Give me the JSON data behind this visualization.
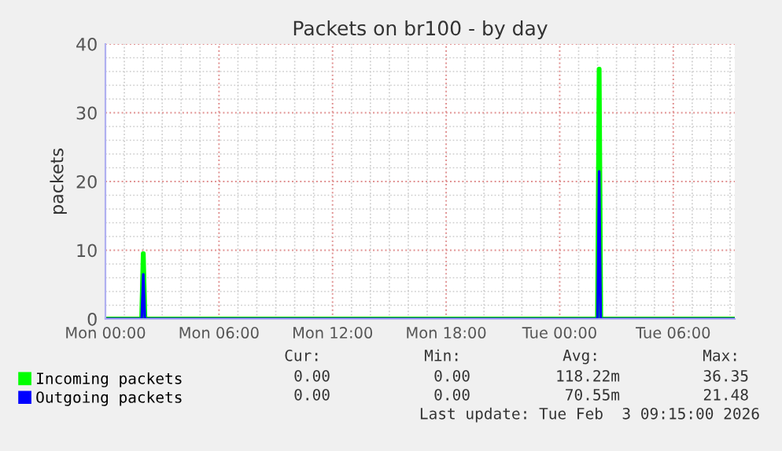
{
  "chart_data": {
    "type": "line",
    "title": "Packets on br100 - by day",
    "ylabel": "packets",
    "xlim": [
      "2026-02-02T00:00",
      "2026-02-03T09:15"
    ],
    "xticks": [
      {
        "value": "2026-02-02T00:00",
        "label": "Mon 00:00"
      },
      {
        "value": "2026-02-02T06:00",
        "label": "Mon 06:00"
      },
      {
        "value": "2026-02-02T12:00",
        "label": "Mon 12:00"
      },
      {
        "value": "2026-02-02T18:00",
        "label": "Mon 18:00"
      },
      {
        "value": "2026-02-03T00:00",
        "label": "Tue 00:00"
      },
      {
        "value": "2026-02-03T06:00",
        "label": "Tue 06:00"
      }
    ],
    "ylim": [
      0,
      40
    ],
    "yticks": [
      0,
      10,
      20,
      30,
      40
    ],
    "grid": true,
    "legend": "bottom left",
    "line_style": "solid",
    "series": [
      {
        "name": "Incoming packets",
        "color": "#00ff00",
        "x": [
          "2026-02-02T00:00",
          "2026-02-02T01:55",
          "2026-02-02T02:00",
          "2026-02-02T02:05",
          "2026-02-03T02:00",
          "2026-02-03T02:05",
          "2026-02-03T02:10",
          "2026-02-03T09:15"
        ],
        "values": [
          0,
          0,
          9.5,
          0,
          0,
          36.35,
          0,
          0
        ]
      },
      {
        "name": "Outgoing packets",
        "color": "#0000ff",
        "x": [
          "2026-02-02T00:00",
          "2026-02-02T01:55",
          "2026-02-02T02:00",
          "2026-02-02T02:05",
          "2026-02-03T02:00",
          "2026-02-03T02:05",
          "2026-02-03T02:10",
          "2026-02-03T09:15"
        ],
        "values": [
          0,
          0,
          6.5,
          0,
          0,
          21.48,
          0,
          0
        ]
      }
    ],
    "annotations": [
      "Cur:",
      "Min:",
      "Avg:",
      "Max:",
      "0.00",
      "0.00",
      "118.22m",
      "36.35",
      "0.00",
      "0.00",
      "70.55m",
      "21.48",
      "Last update: Tue Feb  3 09:15:00 2026"
    ]
  }
}
